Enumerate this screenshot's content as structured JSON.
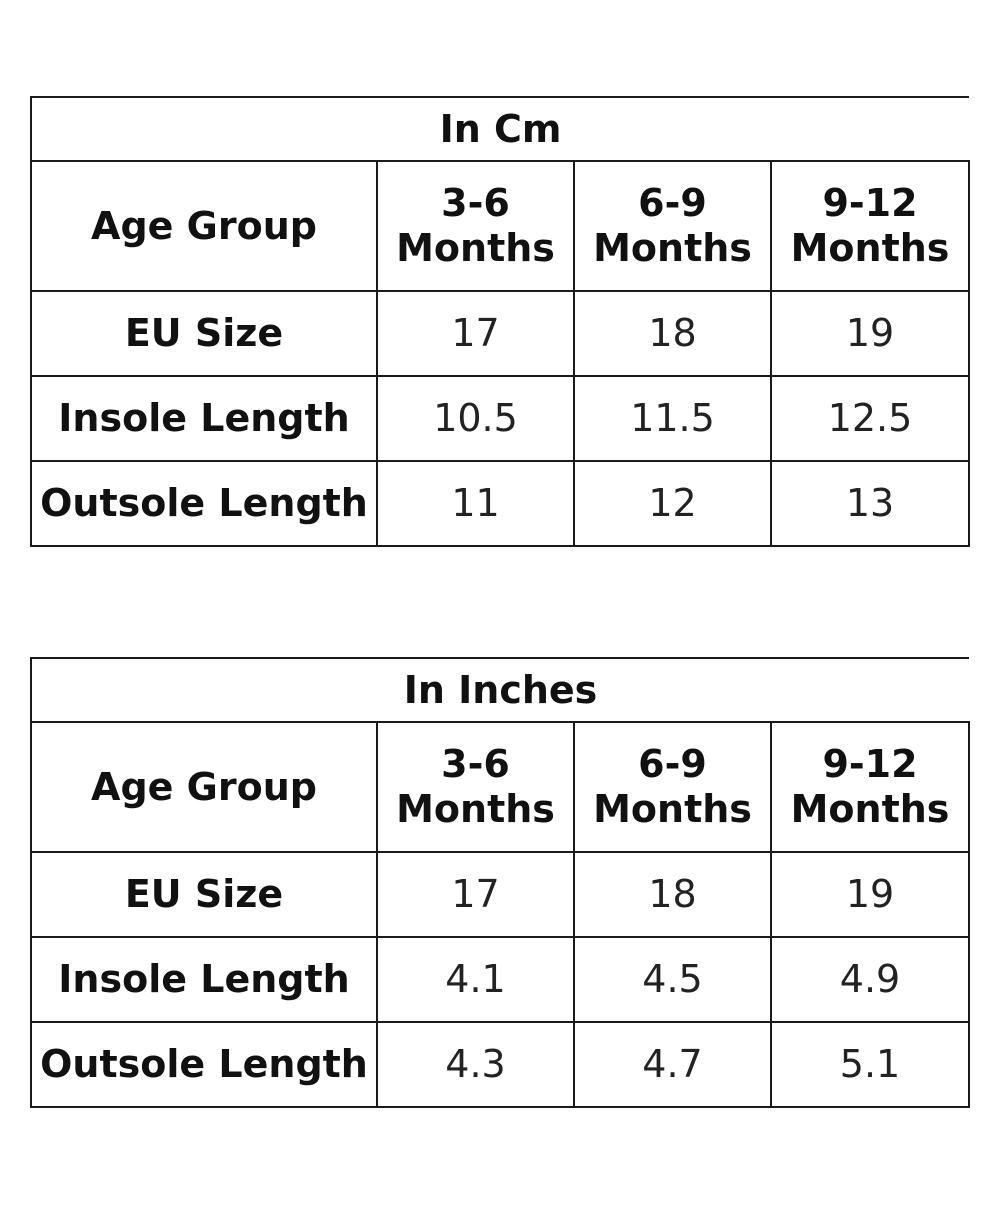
{
  "tables": [
    {
      "title": "In Cm",
      "age_label": "Age Group",
      "columns": [
        {
          "range": "3-6",
          "unit": "Months"
        },
        {
          "range": "6-9",
          "unit": "Months"
        },
        {
          "range": "9-12",
          "unit": "Months"
        }
      ],
      "rows": [
        {
          "label": "EU Size",
          "values": [
            "17",
            "18",
            "19"
          ]
        },
        {
          "label": "Insole Length",
          "values": [
            "10.5",
            "11.5",
            "12.5"
          ]
        },
        {
          "label": "Outsole Length",
          "values": [
            "11",
            "12",
            "13"
          ]
        }
      ]
    },
    {
      "title": "In Inches",
      "age_label": "Age Group",
      "columns": [
        {
          "range": "3-6",
          "unit": "Months"
        },
        {
          "range": "6-9",
          "unit": "Months"
        },
        {
          "range": "9-12",
          "unit": "Months"
        }
      ],
      "rows": [
        {
          "label": "EU Size",
          "values": [
            "17",
            "18",
            "19"
          ]
        },
        {
          "label": "Insole Length",
          "values": [
            "4.1",
            "4.5",
            "4.9"
          ]
        },
        {
          "label": "Outsole Length",
          "values": [
            "4.3",
            "4.7",
            "5.1"
          ]
        }
      ]
    }
  ]
}
